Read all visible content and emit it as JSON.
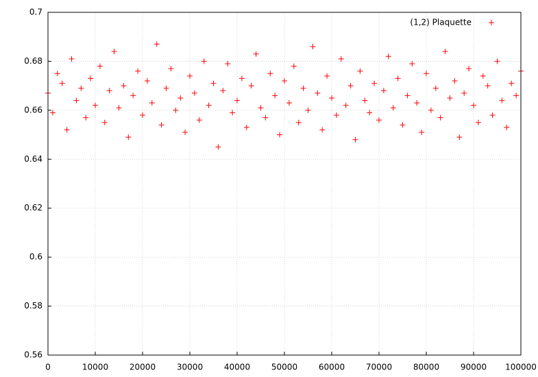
{
  "chart_data": {
    "type": "scatter",
    "marker": "+",
    "grid": true,
    "legend": "top-right",
    "xlim": [
      0,
      100000
    ],
    "xticks": [
      0,
      10000,
      20000,
      30000,
      40000,
      50000,
      60000,
      70000,
      80000,
      90000,
      100000
    ],
    "ylim": [
      0.56,
      0.7
    ],
    "yticks": [
      0.56,
      0.58,
      0.6,
      0.62,
      0.64,
      0.66,
      0.68,
      0.7
    ],
    "series": [
      {
        "name": "(1,2) Plaquette",
        "color": "#ff0000",
        "x": [
          0,
          1000,
          2000,
          3000,
          4000,
          5000,
          6000,
          7000,
          8000,
          9000,
          10000,
          11000,
          12000,
          13000,
          14000,
          15000,
          16000,
          17000,
          18000,
          19000,
          20000,
          21000,
          22000,
          23000,
          24000,
          25000,
          26000,
          27000,
          28000,
          29000,
          30000,
          31000,
          32000,
          33000,
          34000,
          35000,
          36000,
          37000,
          38000,
          39000,
          40000,
          41000,
          42000,
          43000,
          44000,
          45000,
          46000,
          47000,
          48000,
          49000,
          50000,
          51000,
          52000,
          53000,
          54000,
          55000,
          56000,
          57000,
          58000,
          59000,
          60000,
          61000,
          62000,
          63000,
          64000,
          65000,
          66000,
          67000,
          68000,
          69000,
          70000,
          71000,
          72000,
          73000,
          74000,
          75000,
          76000,
          77000,
          78000,
          79000,
          80000,
          81000,
          82000,
          83000,
          84000,
          85000,
          86000,
          87000,
          88000,
          89000,
          90000,
          91000,
          92000,
          93000,
          94000,
          95000,
          96000,
          97000,
          98000,
          99000,
          100000
        ],
        "values": [
          0.667,
          0.659,
          0.675,
          0.671,
          0.652,
          0.681,
          0.664,
          0.669,
          0.657,
          0.673,
          0.662,
          0.678,
          0.655,
          0.668,
          0.684,
          0.661,
          0.67,
          0.649,
          0.666,
          0.676,
          0.658,
          0.672,
          0.663,
          0.687,
          0.654,
          0.669,
          0.677,
          0.66,
          0.665,
          0.651,
          0.674,
          0.667,
          0.656,
          0.68,
          0.662,
          0.671,
          0.645,
          0.668,
          0.679,
          0.659,
          0.664,
          0.673,
          0.653,
          0.67,
          0.683,
          0.661,
          0.657,
          0.675,
          0.666,
          0.65,
          0.672,
          0.663,
          0.678,
          0.655,
          0.669,
          0.66,
          0.686,
          0.667,
          0.652,
          0.674,
          0.665,
          0.658,
          0.681,
          0.662,
          0.67,
          0.648,
          0.676,
          0.664,
          0.659,
          0.671,
          0.656,
          0.668,
          0.682,
          0.661,
          0.673,
          0.654,
          0.666,
          0.679,
          0.663,
          0.651,
          0.675,
          0.66,
          0.669,
          0.657,
          0.684,
          0.665,
          0.672,
          0.649,
          0.667,
          0.677,
          0.662,
          0.655,
          0.674,
          0.67,
          0.658,
          0.68,
          0.664,
          0.653,
          0.671,
          0.666,
          0.676
        ]
      }
    ]
  }
}
